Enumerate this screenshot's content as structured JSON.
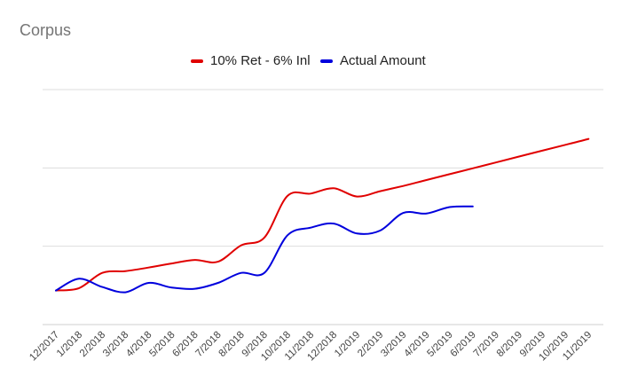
{
  "chart_data": {
    "type": "line",
    "title": "Corpus",
    "xlabel": "",
    "ylabel": "",
    "legend_position": "top",
    "grid": true,
    "ylim": [
      0,
      4
    ],
    "categories": [
      "12/2017",
      "1/2018",
      "2/2018",
      "3/2018",
      "4/2018",
      "5/2018",
      "6/2018",
      "7/2018",
      "8/2018",
      "9/2018",
      "10/2018",
      "11/2018",
      "12/2018",
      "1/2019",
      "2/2019",
      "3/2019",
      "4/2019",
      "5/2019",
      "6/2019",
      "7/2019",
      "8/2019",
      "9/2019",
      "10/2019",
      "11/2019"
    ],
    "series": [
      {
        "name": "10% Ret - 6% Inl",
        "color": "#e00000",
        "values": [
          0.58,
          0.62,
          0.88,
          0.91,
          0.97,
          1.04,
          1.1,
          1.07,
          1.35,
          1.48,
          2.19,
          2.23,
          2.32,
          2.18,
          2.27,
          2.36,
          2.46,
          2.56,
          2.66,
          2.76,
          2.86,
          2.96,
          3.06,
          3.16
        ]
      },
      {
        "name": "Actual Amount",
        "color": "#0000dd",
        "values": [
          0.58,
          0.78,
          0.64,
          0.55,
          0.71,
          0.63,
          0.61,
          0.71,
          0.88,
          0.88,
          1.52,
          1.65,
          1.72,
          1.55,
          1.6,
          1.9,
          1.89,
          2.0,
          2.01,
          null,
          null,
          null,
          null,
          null
        ]
      }
    ]
  }
}
